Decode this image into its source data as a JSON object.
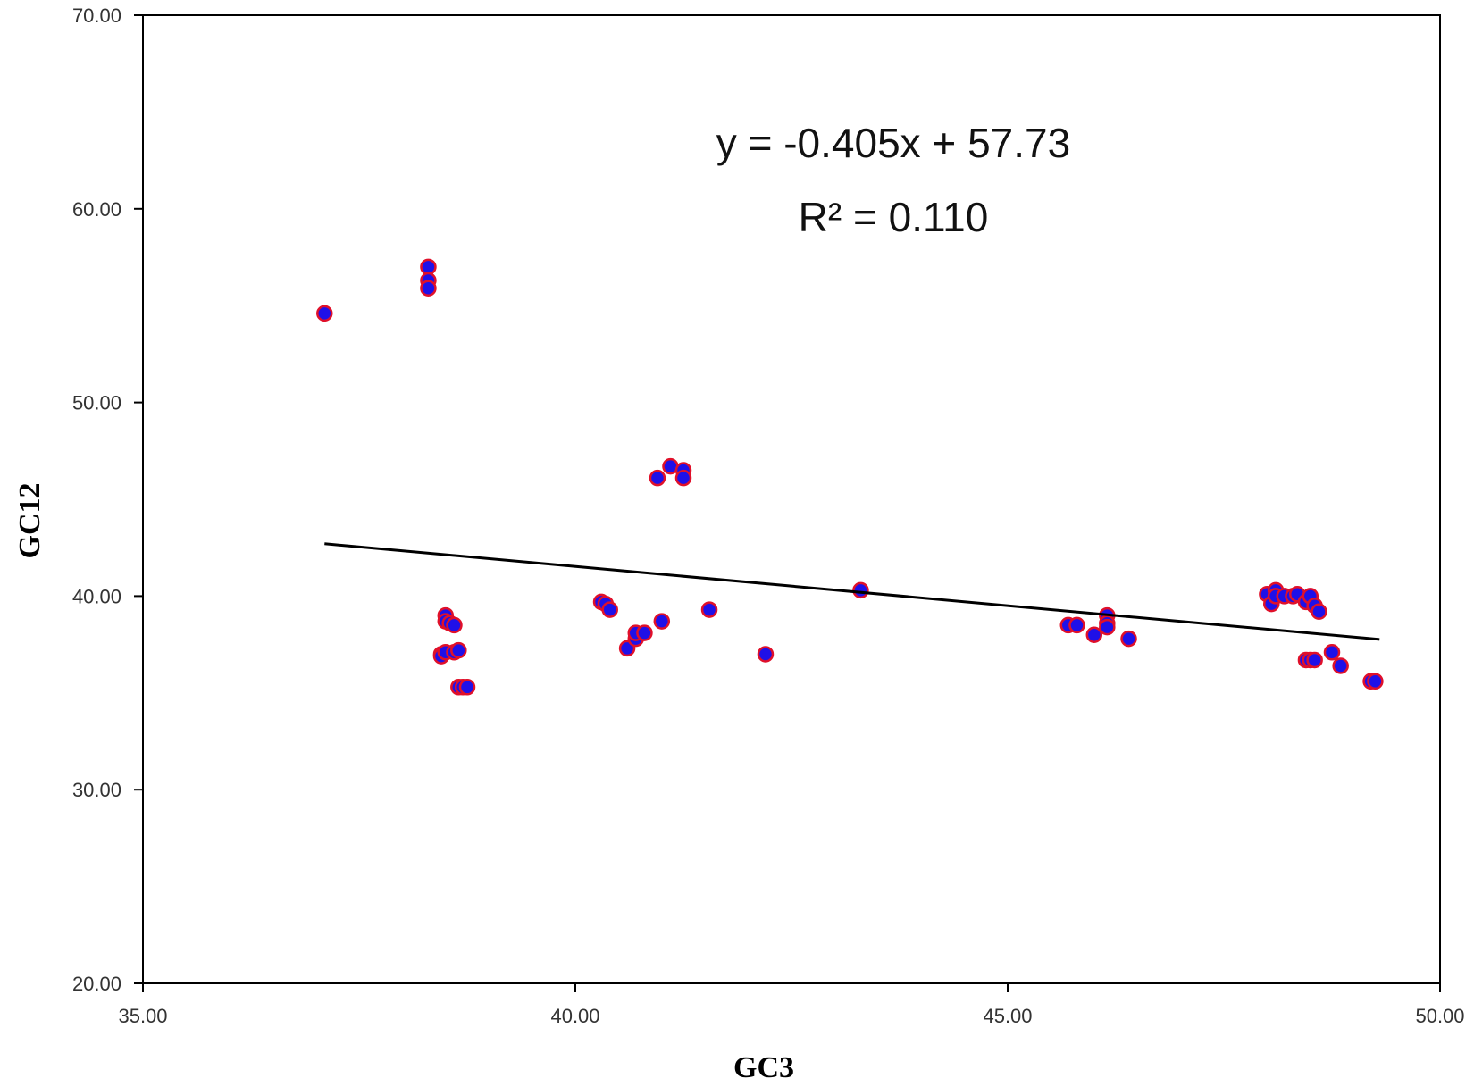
{
  "chart_data": {
    "type": "scatter",
    "title": "",
    "xlabel": "GC3",
    "ylabel": "GC12",
    "xlim": [
      35,
      50
    ],
    "ylim": [
      20,
      70
    ],
    "x_ticks": [
      "35.00",
      "40.00",
      "45.00",
      "50.00"
    ],
    "y_ticks": [
      "20.00",
      "30.00",
      "40.00",
      "50.00",
      "60.00",
      "70.00"
    ],
    "grid": false,
    "legend": "none",
    "marker_fill": "#1f10e8",
    "marker_edge": "#e0102a",
    "trendline": {
      "slope": -0.405,
      "intercept": 57.73,
      "x_range": [
        37.1,
        49.3
      ],
      "color": "#000000",
      "equation_label": "y = -0.405x + 57.73",
      "r2_label": "R² = 0.110"
    },
    "series": [
      {
        "points": [
          [
            37.1,
            54.6
          ],
          [
            38.3,
            57.0
          ],
          [
            38.3,
            56.3
          ],
          [
            38.3,
            55.9
          ],
          [
            38.5,
            39.0
          ],
          [
            38.5,
            38.7
          ],
          [
            38.55,
            38.6
          ],
          [
            38.6,
            38.5
          ],
          [
            38.45,
            37.0
          ],
          [
            38.45,
            36.9
          ],
          [
            38.5,
            37.1
          ],
          [
            38.6,
            37.1
          ],
          [
            38.65,
            37.2
          ],
          [
            38.65,
            35.3
          ],
          [
            38.7,
            35.3
          ],
          [
            38.75,
            35.3
          ],
          [
            40.3,
            39.7
          ],
          [
            40.35,
            39.6
          ],
          [
            40.4,
            39.3
          ],
          [
            40.6,
            37.3
          ],
          [
            40.7,
            37.8
          ],
          [
            40.7,
            38.1
          ],
          [
            40.8,
            38.1
          ],
          [
            40.95,
            46.1
          ],
          [
            41.1,
            46.7
          ],
          [
            41.25,
            46.5
          ],
          [
            41.25,
            46.1
          ],
          [
            41.0,
            38.7
          ],
          [
            41.55,
            39.3
          ],
          [
            42.2,
            37.0
          ],
          [
            43.3,
            40.3
          ],
          [
            45.7,
            38.5
          ],
          [
            45.8,
            38.5
          ],
          [
            46.0,
            38.0
          ],
          [
            46.15,
            39.0
          ],
          [
            46.15,
            38.6
          ],
          [
            46.15,
            38.4
          ],
          [
            46.4,
            37.8
          ],
          [
            48.0,
            40.1
          ],
          [
            48.05,
            39.6
          ],
          [
            48.1,
            40.3
          ],
          [
            48.1,
            40.0
          ],
          [
            48.2,
            40.0
          ],
          [
            48.3,
            40.0
          ],
          [
            48.35,
            40.1
          ],
          [
            48.45,
            39.7
          ],
          [
            48.5,
            40.0
          ],
          [
            48.55,
            39.5
          ],
          [
            48.6,
            39.2
          ],
          [
            48.45,
            36.7
          ],
          [
            48.5,
            36.7
          ],
          [
            48.55,
            36.7
          ],
          [
            48.75,
            37.1
          ],
          [
            48.85,
            36.4
          ],
          [
            49.2,
            35.6
          ],
          [
            49.25,
            35.6
          ]
        ]
      }
    ]
  }
}
